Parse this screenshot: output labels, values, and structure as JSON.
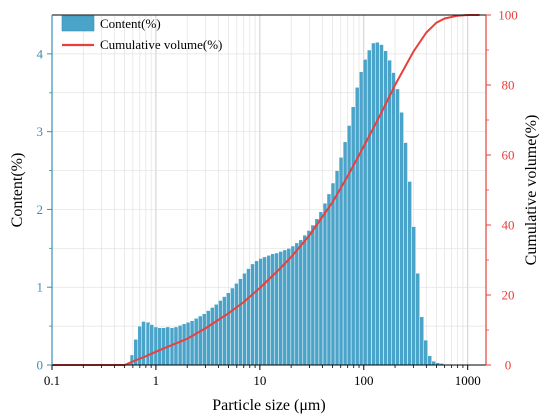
{
  "chart_data": {
    "type": "bar",
    "xlabel": "Particle size (μm)",
    "ylabel": "Content(%)",
    "y2label": "Cumulative volume(%)",
    "xscale": "log",
    "xlim": [
      0.1,
      1500
    ],
    "ylim": [
      0,
      4.5
    ],
    "y2lim": [
      0,
      100
    ],
    "x_ticks": [
      "0.1",
      "1",
      "10",
      "100",
      "1000"
    ],
    "y_ticks": [
      "0",
      "1",
      "2",
      "3",
      "4"
    ],
    "y2_ticks": [
      "0",
      "20",
      "40",
      "60",
      "80",
      "100"
    ],
    "grid": "on",
    "legend_position": "top-left",
    "colors": {
      "bar": "#4aa3c8",
      "line": "#e8403d",
      "left_axis": "#3a8fb7",
      "right_axis": "#e8403d"
    },
    "series": [
      {
        "name": "Content(%)",
        "type": "bar",
        "bin_width_log10": 0.0392,
        "x": [
          0.54,
          0.59,
          0.64,
          0.7,
          0.76,
          0.84,
          0.91,
          1.0,
          1.09,
          1.19,
          1.3,
          1.43,
          1.56,
          1.71,
          1.87,
          2.04,
          2.23,
          2.44,
          2.67,
          2.92,
          3.19,
          3.49,
          3.81,
          4.17,
          4.56,
          4.98,
          5.45,
          5.96,
          6.51,
          7.12,
          7.78,
          8.51,
          9.3,
          10.2,
          11.1,
          12.2,
          13.3,
          14.5,
          15.9,
          17.4,
          19.0,
          20.8,
          22.7,
          24.8,
          27.1,
          29.7,
          32.4,
          35.4,
          38.7,
          42.4,
          46.3,
          50.6,
          55.4,
          60.5,
          66.2,
          72.3,
          79.1,
          86.5,
          94.5,
          103,
          113,
          124,
          135,
          148,
          162,
          177,
          193,
          211,
          231,
          252,
          276,
          302,
          330,
          361,
          394,
          431,
          471,
          515,
          563,
          616,
          673,
          736,
          805,
          880,
          962,
          1052,
          1150
        ],
        "values": [
          0.02,
          0.13,
          0.33,
          0.5,
          0.56,
          0.55,
          0.52,
          0.49,
          0.48,
          0.48,
          0.49,
          0.48,
          0.49,
          0.51,
          0.53,
          0.55,
          0.57,
          0.6,
          0.63,
          0.66,
          0.7,
          0.74,
          0.78,
          0.83,
          0.88,
          0.93,
          0.99,
          1.05,
          1.11,
          1.18,
          1.24,
          1.3,
          1.34,
          1.37,
          1.39,
          1.41,
          1.43,
          1.44,
          1.46,
          1.48,
          1.5,
          1.53,
          1.57,
          1.61,
          1.67,
          1.73,
          1.8,
          1.88,
          1.97,
          2.08,
          2.2,
          2.34,
          2.5,
          2.67,
          2.87,
          3.08,
          3.32,
          3.57,
          3.77,
          3.93,
          4.05,
          4.14,
          4.15,
          4.12,
          4.04,
          3.92,
          3.76,
          3.55,
          3.25,
          2.86,
          2.36,
          1.78,
          1.18,
          0.62,
          0.32,
          0.12,
          0.05,
          0.03,
          0.02,
          0.01,
          0.01,
          0.01,
          0.0,
          0.0,
          0.0,
          0.0,
          0.0
        ]
      },
      {
        "name": "Cumulative volume(%)",
        "type": "line",
        "axis": "right",
        "x": [
          0.1,
          0.3,
          0.5,
          0.6,
          0.8,
          1,
          2,
          3,
          5,
          7,
          10,
          15,
          20,
          30,
          50,
          70,
          100,
          150,
          200,
          300,
          400,
          500,
          600,
          800,
          1000,
          1300
        ],
        "values": [
          0,
          0,
          0,
          1,
          2.5,
          3.8,
          7.5,
          10.5,
          14.8,
          18.0,
          22.0,
          27.0,
          30.8,
          37.0,
          46.5,
          54.0,
          62.5,
          72.5,
          80.0,
          89.5,
          95.0,
          97.8,
          99.0,
          99.8,
          100,
          100
        ]
      }
    ]
  }
}
